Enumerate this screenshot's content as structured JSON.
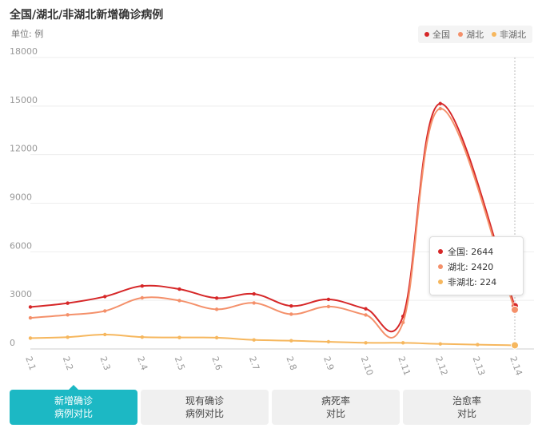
{
  "title": "全国/湖北/非湖北新增确诊病例",
  "unit": "单位: 例",
  "legend": [
    {
      "name": "全国",
      "color": "#d62728"
    },
    {
      "name": "湖北",
      "color": "#f4906a"
    },
    {
      "name": "非湖北",
      "color": "#f6b75e"
    }
  ],
  "chart_data": {
    "type": "line",
    "categories": [
      "2.1",
      "2.2",
      "2.3",
      "2.4",
      "2.5",
      "2.6",
      "2.7",
      "2.8",
      "2.9",
      "2.10",
      "2.11",
      "2.12",
      "2.13",
      "2.14"
    ],
    "y_ticks": [
      "0",
      "3000",
      "6000",
      "9000",
      "12000",
      "15000",
      "18000"
    ],
    "ylim": [
      0,
      18000
    ],
    "series": [
      {
        "name": "全国",
        "color": "#d62728",
        "values": [
          2590,
          2829,
          3235,
          3887,
          3694,
          3143,
          3399,
          2656,
          3062,
          2478,
          2015,
          15152,
          null,
          2644
        ]
      },
      {
        "name": "湖北",
        "color": "#f4906a",
        "values": [
          1921,
          2103,
          2345,
          3156,
          2987,
          2447,
          2841,
          2147,
          2618,
          2097,
          1638,
          14840,
          null,
          2420
        ]
      },
      {
        "name": "非湖北",
        "color": "#f6b75e",
        "values": [
          669,
          726,
          890,
          731,
          707,
          696,
          558,
          509,
          444,
          381,
          377,
          312,
          267,
          224
        ]
      }
    ]
  },
  "tooltip": {
    "rows": [
      {
        "label": "全国: 2644",
        "color": "#d62728"
      },
      {
        "label": "湖北: 2420",
        "color": "#f4906a"
      },
      {
        "label": "非湖北: 224",
        "color": "#f6b75e"
      }
    ]
  },
  "tabs": [
    {
      "label": "新增确诊\n病例对比",
      "active": true
    },
    {
      "label": "现有确诊\n病例对比",
      "active": false
    },
    {
      "label": "病死率\n对比",
      "active": false
    },
    {
      "label": "治愈率\n对比",
      "active": false
    }
  ]
}
